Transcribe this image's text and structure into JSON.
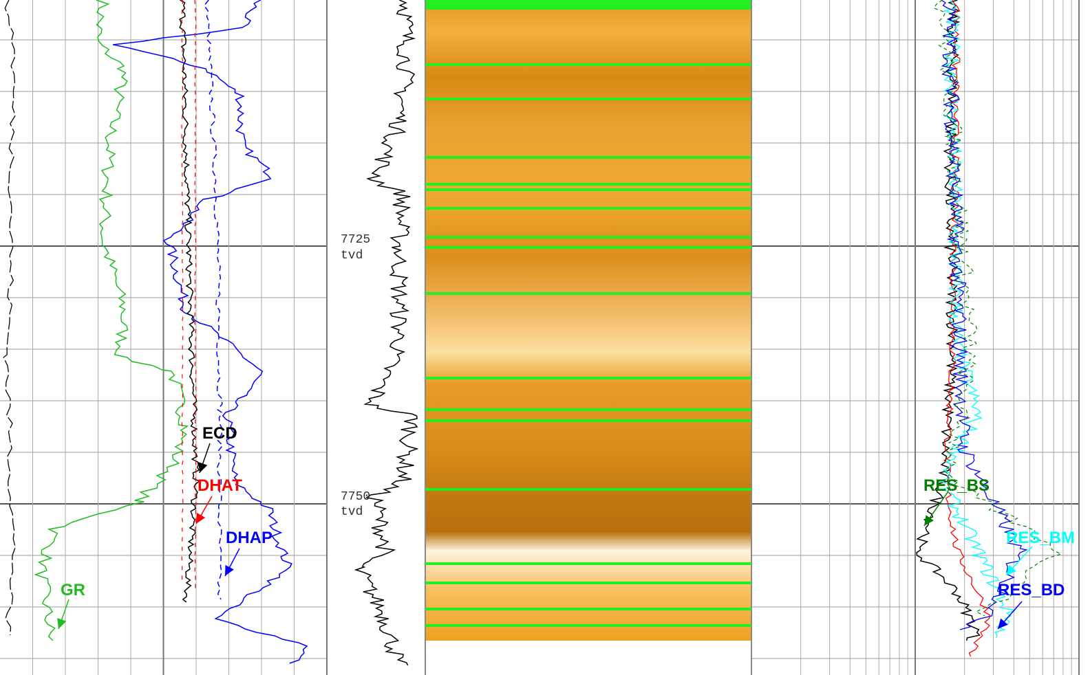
{
  "depth_labels": [
    {
      "depth": 7725,
      "unit": "tvd"
    },
    {
      "depth": 7750,
      "unit": "tvd"
    }
  ],
  "curve_labels": [
    {
      "text": "ECD",
      "color": "#000000"
    },
    {
      "text": "DHAT",
      "color": "#ff0000"
    },
    {
      "text": "DHAP",
      "color": "#0000ff"
    },
    {
      "text": "GR",
      "color": "#22bb22"
    },
    {
      "text": "RES_BS",
      "color": "#008000"
    },
    {
      "text": "RES_BM",
      "color": "#00ffff"
    },
    {
      "text": "RES_BD",
      "color": "#0000ff"
    }
  ]
}
